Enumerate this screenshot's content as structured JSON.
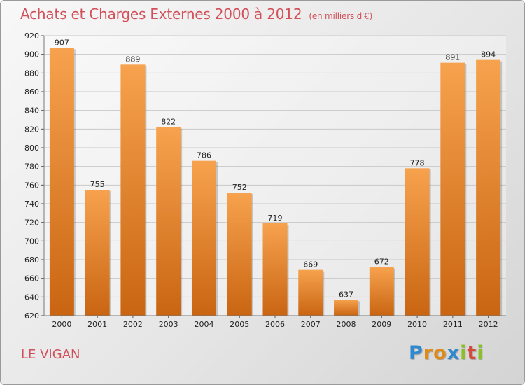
{
  "header": {
    "title": "Achats et Charges Externes 2000 à 2012",
    "subtitle": "(en milliers d'€)"
  },
  "footer": {
    "commune": "LE VIGAN",
    "brand": "Proxiti",
    "brand_letters": [
      {
        "ch": "P",
        "color": "#2f89cf"
      },
      {
        "ch": "r",
        "color": "#e08a18"
      },
      {
        "ch": "o",
        "color": "#e08a18"
      },
      {
        "ch": "x",
        "color": "#2f89cf"
      },
      {
        "ch": "i",
        "color": "#8dbf2a"
      },
      {
        "ch": "t",
        "color": "#d64a3a"
      },
      {
        "ch": "i",
        "color": "#8dbf2a"
      }
    ]
  },
  "colors": {
    "title": "#d1505a",
    "bar_light": "#f7a24e",
    "bar_dark": "#c96512",
    "grid": "#c8c8c8"
  },
  "chart_data": {
    "type": "bar",
    "title": "Achats et Charges Externes 2000 à 2012",
    "subtitle": "(en milliers d'€)",
    "categories": [
      "2000",
      "2001",
      "2002",
      "2003",
      "2004",
      "2005",
      "2006",
      "2007",
      "2008",
      "2009",
      "2010",
      "2011",
      "2012"
    ],
    "values": [
      907,
      755,
      889,
      822,
      786,
      752,
      719,
      669,
      637,
      672,
      778,
      891,
      894
    ],
    "ylim": [
      620,
      920
    ],
    "yticks": [
      620,
      640,
      660,
      680,
      700,
      720,
      740,
      760,
      780,
      800,
      820,
      840,
      860,
      880,
      900,
      920
    ],
    "grid": true,
    "data_labels": true
  }
}
